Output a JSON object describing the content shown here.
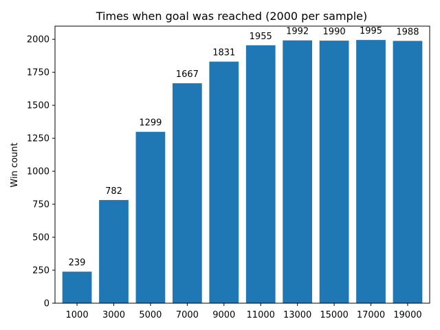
{
  "chart_data": {
    "type": "bar",
    "title": "Times when goal was reached (2000 per sample)",
    "xlabel": "",
    "ylabel": "Win count",
    "categories": [
      "1000",
      "3000",
      "5000",
      "7000",
      "9000",
      "11000",
      "13000",
      "15000",
      "17000",
      "19000"
    ],
    "values": [
      239,
      782,
      1299,
      1667,
      1831,
      1955,
      1992,
      1990,
      1995,
      1988
    ],
    "data_labels": [
      "239",
      "782",
      "1299",
      "1667",
      "1831",
      "1955",
      "1992",
      "1990",
      "1995",
      "1988"
    ],
    "ylim": [
      0,
      2100
    ],
    "yticks": [
      0,
      250,
      500,
      750,
      1000,
      1250,
      1500,
      1750,
      2000
    ],
    "ytick_labels": [
      "0",
      "250",
      "500",
      "750",
      "1000",
      "1250",
      "1500",
      "1750",
      "2000"
    ],
    "grid": false,
    "legend": "none",
    "bar_color": "#1f77b4"
  }
}
